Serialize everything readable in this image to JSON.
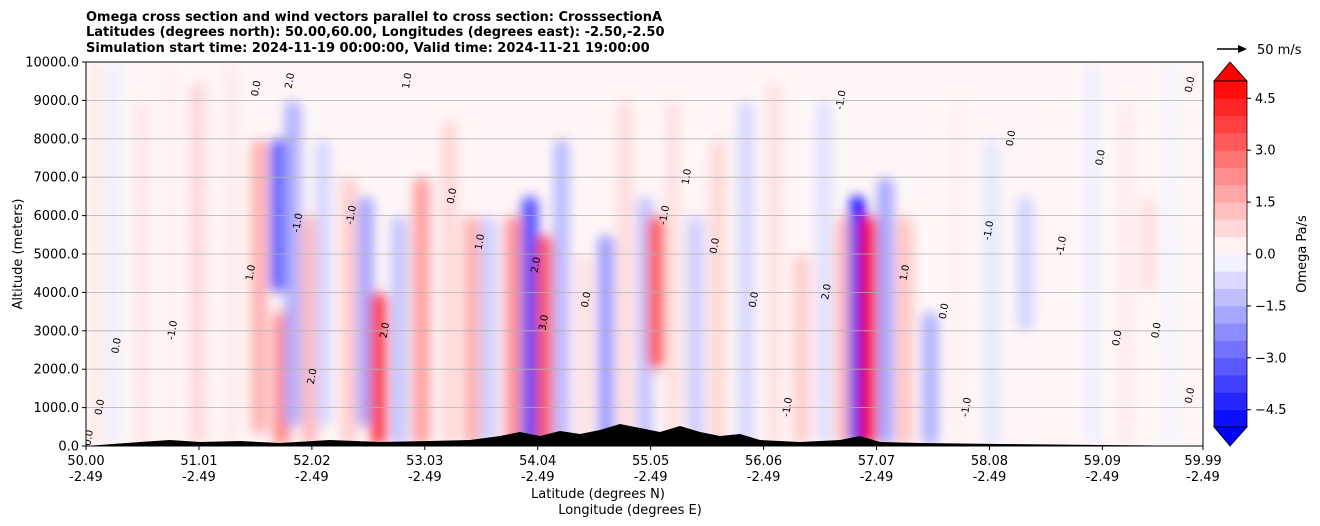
{
  "chart_data": {
    "type": "heatmap",
    "title_lines": [
      "Omega cross section and wind vectors parallel to cross section: CrosssectionA",
      "Latitudes (degrees north): 50.00,60.00, Longitudes (degrees east): -2.50,-2.50",
      "Simulation start time: 2024-11-19 00:00:00, Valid time: 2024-11-21 19:00:00"
    ],
    "ylabel": "Altitude (meters)",
    "xlabel_lines": [
      "Latitude (degrees N)",
      "Longitude (degrees E)"
    ],
    "ylim": [
      0,
      10000
    ],
    "xlim": [
      50.0,
      59.99
    ],
    "yticks": [
      {
        "value": 0,
        "label": "0.0"
      },
      {
        "value": 1000,
        "label": "1000.0"
      },
      {
        "value": 2000,
        "label": "2000.0"
      },
      {
        "value": 3000,
        "label": "3000.0"
      },
      {
        "value": 4000,
        "label": "4000.0"
      },
      {
        "value": 5000,
        "label": "5000.0"
      },
      {
        "value": 6000,
        "label": "6000.0"
      },
      {
        "value": 7000,
        "label": "7000.0"
      },
      {
        "value": 8000,
        "label": "8000.0"
      },
      {
        "value": 9000,
        "label": "9000.0"
      },
      {
        "value": 10000,
        "label": "10000.0"
      }
    ],
    "xticks": [
      {
        "value": 50.0,
        "lat": "50.00",
        "lon": "-2.49"
      },
      {
        "value": 51.01,
        "lat": "51.01",
        "lon": "-2.49"
      },
      {
        "value": 52.02,
        "lat": "52.02",
        "lon": "-2.49"
      },
      {
        "value": 53.03,
        "lat": "53.03",
        "lon": "-2.49"
      },
      {
        "value": 54.04,
        "lat": "54.04",
        "lon": "-2.49"
      },
      {
        "value": 55.05,
        "lat": "55.05",
        "lon": "-2.49"
      },
      {
        "value": 56.06,
        "lat": "56.06",
        "lon": "-2.49"
      },
      {
        "value": 57.07,
        "lat": "57.07",
        "lon": "-2.49"
      },
      {
        "value": 58.08,
        "lat": "58.08",
        "lon": "-2.49"
      },
      {
        "value": 59.09,
        "lat": "59.09",
        "lon": "-2.49"
      },
      {
        "value": 59.99,
        "lat": "59.99",
        "lon": "-2.49"
      }
    ],
    "grid_y": true,
    "colorbar": {
      "label": "Omega Pa/s",
      "vmin": -5.0,
      "vmax": 5.0,
      "extend": "both",
      "ticks": [
        {
          "value": 4.5,
          "label": "4.5"
        },
        {
          "value": 3.0,
          "label": "3.0"
        },
        {
          "value": 1.5,
          "label": "1.5"
        },
        {
          "value": 0.0,
          "label": "0.0"
        },
        {
          "value": -1.5,
          "label": "−1.5"
        },
        {
          "value": -3.0,
          "label": "−3.0"
        },
        {
          "value": -4.5,
          "label": "−4.5"
        }
      ],
      "low_color": "#0000ff",
      "mid_color": "#ffffff",
      "high_color": "#ff0000"
    },
    "quiver_key": {
      "label": "50 m/s"
    },
    "cells": [
      {
        "lat": 50.1,
        "z0": 0,
        "z1": 10000,
        "omega": 0.4
      },
      {
        "lat": 50.25,
        "z0": 0,
        "z1": 10000,
        "omega": -0.3
      },
      {
        "lat": 50.5,
        "z0": 0,
        "z1": 9000,
        "omega": 0.5
      },
      {
        "lat": 50.75,
        "z0": 0,
        "z1": 10000,
        "omega": 0.3
      },
      {
        "lat": 51.0,
        "z0": 0,
        "z1": 9500,
        "omega": 0.8
      },
      {
        "lat": 51.3,
        "z0": 0,
        "z1": 10000,
        "omega": 0.4
      },
      {
        "lat": 51.55,
        "z0": 300,
        "z1": 8000,
        "omega": 1.6
      },
      {
        "lat": 51.72,
        "z0": 4000,
        "z1": 8000,
        "omega": -3.2
      },
      {
        "lat": 51.75,
        "z0": 0,
        "z1": 3500,
        "omega": 2.5
      },
      {
        "lat": 51.85,
        "z0": 500,
        "z1": 9000,
        "omega": -1.6
      },
      {
        "lat": 52.0,
        "z0": 0,
        "z1": 6000,
        "omega": 1.4
      },
      {
        "lat": 52.12,
        "z0": 500,
        "z1": 8000,
        "omega": -0.8
      },
      {
        "lat": 52.35,
        "z0": 0,
        "z1": 7000,
        "omega": 1.0
      },
      {
        "lat": 52.5,
        "z0": 500,
        "z1": 6500,
        "omega": -1.8
      },
      {
        "lat": 52.62,
        "z0": 0,
        "z1": 4000,
        "omega": 4.0
      },
      {
        "lat": 52.8,
        "z0": 0,
        "z1": 6000,
        "omega": -1.2
      },
      {
        "lat": 53.0,
        "z0": 0,
        "z1": 7000,
        "omega": 2.0
      },
      {
        "lat": 53.25,
        "z0": 0,
        "z1": 8500,
        "omega": 0.8
      },
      {
        "lat": 53.45,
        "z0": 0,
        "z1": 6000,
        "omega": 1.6
      },
      {
        "lat": 53.6,
        "z0": 0,
        "z1": 6000,
        "omega": -1.0
      },
      {
        "lat": 53.82,
        "z0": 0,
        "z1": 6000,
        "omega": 2.2
      },
      {
        "lat": 53.97,
        "z0": 0,
        "z1": 6500,
        "omega": -3.6
      },
      {
        "lat": 54.1,
        "z0": 0,
        "z1": 5500,
        "omega": 3.4
      },
      {
        "lat": 54.25,
        "z0": 0,
        "z1": 8000,
        "omega": -1.4
      },
      {
        "lat": 54.45,
        "z0": 0,
        "z1": 5000,
        "omega": 0.6
      },
      {
        "lat": 54.65,
        "z0": 0,
        "z1": 5500,
        "omega": -2.0
      },
      {
        "lat": 54.82,
        "z0": 0,
        "z1": 9000,
        "omega": 0.7
      },
      {
        "lat": 55.0,
        "z0": 0,
        "z1": 6500,
        "omega": -1.2
      },
      {
        "lat": 55.1,
        "z0": 2000,
        "z1": 6000,
        "omega": 3.6
      },
      {
        "lat": 55.25,
        "z0": 0,
        "z1": 9000,
        "omega": 0.6
      },
      {
        "lat": 55.45,
        "z0": 0,
        "z1": 6000,
        "omega": -1.0
      },
      {
        "lat": 55.65,
        "z0": 0,
        "z1": 8000,
        "omega": 0.8
      },
      {
        "lat": 55.9,
        "z0": 0,
        "z1": 9000,
        "omega": -0.8
      },
      {
        "lat": 56.15,
        "z0": 0,
        "z1": 9500,
        "omega": 0.6
      },
      {
        "lat": 56.4,
        "z0": 0,
        "z1": 5000,
        "omega": 1.0
      },
      {
        "lat": 56.6,
        "z0": 0,
        "z1": 9000,
        "omega": -0.6
      },
      {
        "lat": 56.78,
        "z0": 0,
        "z1": 6000,
        "omega": 1.4
      },
      {
        "lat": 56.9,
        "z0": 0,
        "z1": 6500,
        "omega": -5.0
      },
      {
        "lat": 57.0,
        "z0": 0,
        "z1": 6000,
        "omega": 4.8
      },
      {
        "lat": 57.15,
        "z0": 0,
        "z1": 7000,
        "omega": -1.8
      },
      {
        "lat": 57.32,
        "z0": 0,
        "z1": 6000,
        "omega": 1.2
      },
      {
        "lat": 57.55,
        "z0": 0,
        "z1": 3500,
        "omega": -1.6
      },
      {
        "lat": 57.8,
        "z0": 0,
        "z1": 9000,
        "omega": 0.3
      },
      {
        "lat": 58.1,
        "z0": 0,
        "z1": 8000,
        "omega": -0.5
      },
      {
        "lat": 58.4,
        "z0": 3000,
        "z1": 6500,
        "omega": -0.9
      },
      {
        "lat": 58.7,
        "z0": 0,
        "z1": 9000,
        "omega": 0.2
      },
      {
        "lat": 59.0,
        "z0": 0,
        "z1": 10000,
        "omega": -0.3
      },
      {
        "lat": 59.3,
        "z0": 0,
        "z1": 9000,
        "omega": 0.4
      },
      {
        "lat": 59.5,
        "z0": 4000,
        "z1": 6500,
        "omega": 0.6
      },
      {
        "lat": 59.7,
        "z0": 0,
        "z1": 10000,
        "omega": -0.2
      },
      {
        "lat": 59.9,
        "z0": 0,
        "z1": 10000,
        "omega": 0.2
      }
    ],
    "contour_labels": [
      {
        "lat": 50.05,
        "z": 200,
        "text": "0.0"
      },
      {
        "lat": 50.3,
        "z": 2600,
        "text": "0.0"
      },
      {
        "lat": 50.15,
        "z": 1000,
        "text": "0.0"
      },
      {
        "lat": 50.8,
        "z": 3000,
        "text": "-1.0"
      },
      {
        "lat": 51.5,
        "z": 4500,
        "text": "1.0"
      },
      {
        "lat": 51.55,
        "z": 9300,
        "text": "0.0"
      },
      {
        "lat": 51.85,
        "z": 9500,
        "text": "2.0"
      },
      {
        "lat": 51.92,
        "z": 5800,
        "text": "-1.0"
      },
      {
        "lat": 52.05,
        "z": 1800,
        "text": "2.0"
      },
      {
        "lat": 52.4,
        "z": 6000,
        "text": "-1.0"
      },
      {
        "lat": 52.7,
        "z": 3000,
        "text": "2.0"
      },
      {
        "lat": 52.9,
        "z": 9500,
        "text": "1.0"
      },
      {
        "lat": 53.3,
        "z": 6500,
        "text": "0.0"
      },
      {
        "lat": 53.55,
        "z": 5300,
        "text": "1.0"
      },
      {
        "lat": 54.05,
        "z": 4700,
        "text": "2.0"
      },
      {
        "lat": 54.12,
        "z": 3200,
        "text": "3.0"
      },
      {
        "lat": 54.5,
        "z": 3800,
        "text": "0.0"
      },
      {
        "lat": 55.2,
        "z": 6000,
        "text": "-1.0"
      },
      {
        "lat": 55.4,
        "z": 7000,
        "text": "1.0"
      },
      {
        "lat": 55.65,
        "z": 5200,
        "text": "0.0"
      },
      {
        "lat": 56.0,
        "z": 3800,
        "text": "0.0"
      },
      {
        "lat": 56.3,
        "z": 1000,
        "text": "-1.0"
      },
      {
        "lat": 56.65,
        "z": 4000,
        "text": "2.0"
      },
      {
        "lat": 56.78,
        "z": 9000,
        "text": "-1.0"
      },
      {
        "lat": 57.35,
        "z": 4500,
        "text": "1.0"
      },
      {
        "lat": 57.7,
        "z": 3500,
        "text": "0.0"
      },
      {
        "lat": 57.9,
        "z": 1000,
        "text": "-1.0"
      },
      {
        "lat": 58.1,
        "z": 5600,
        "text": "-1.0"
      },
      {
        "lat": 58.3,
        "z": 8000,
        "text": "0.0"
      },
      {
        "lat": 58.75,
        "z": 5200,
        "text": "-1.0"
      },
      {
        "lat": 59.1,
        "z": 7500,
        "text": "0.0"
      },
      {
        "lat": 59.25,
        "z": 2800,
        "text": "0.0"
      },
      {
        "lat": 59.6,
        "z": 3000,
        "text": "0.0"
      },
      {
        "lat": 59.9,
        "z": 1300,
        "text": "0.0"
      },
      {
        "lat": 59.9,
        "z": 9400,
        "text": "0.0"
      }
    ]
  }
}
